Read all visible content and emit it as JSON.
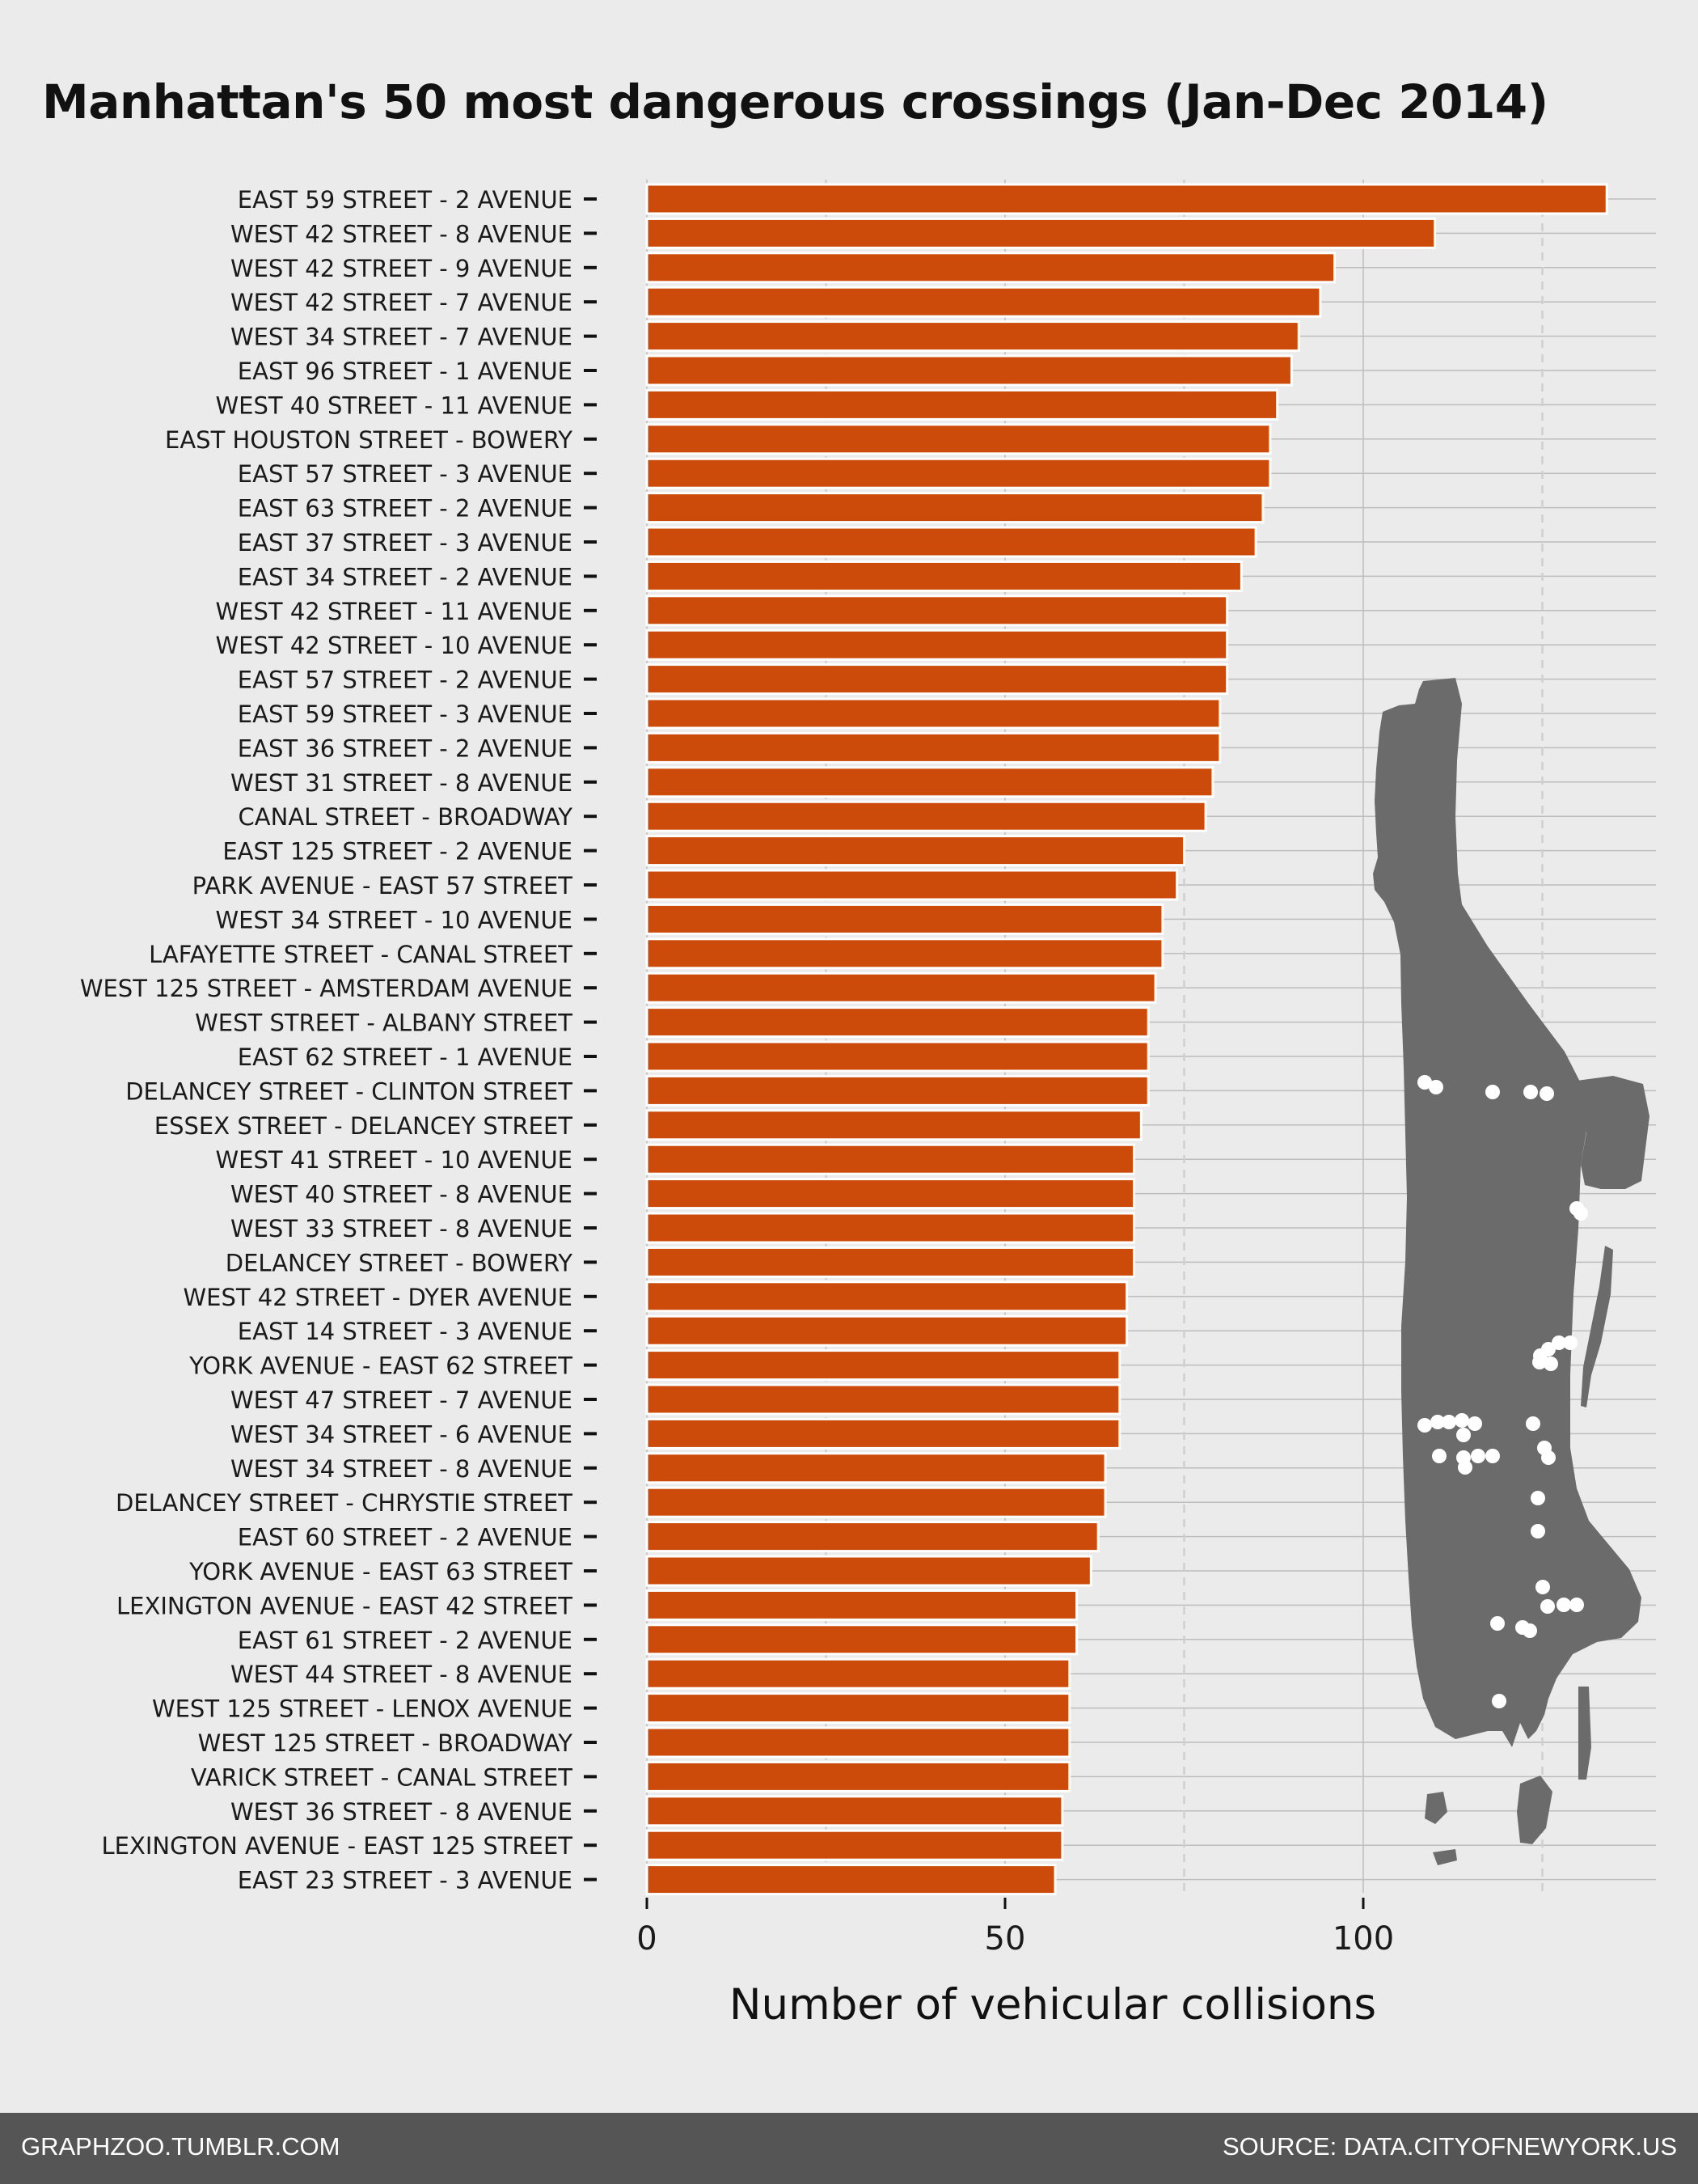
{
  "chart_data": {
    "type": "bar",
    "orientation": "horizontal",
    "title": "Manhattan's 50 most dangerous crossings (Jan-Dec 2014)",
    "xlabel": "Number of vehicular collisions",
    "ylabel": "",
    "xlim": [
      0,
      140
    ],
    "xticks": [
      0,
      50,
      100
    ],
    "grid": true,
    "bar_color": "#cc4a0a",
    "inset": "map of Manhattan with the 50 crossings marked as white dots",
    "categories": [
      "EAST 59 STREET - 2 AVENUE",
      "WEST 42 STREET - 8 AVENUE",
      "WEST 42 STREET - 9 AVENUE",
      "WEST 42 STREET - 7 AVENUE",
      "WEST 34 STREET - 7 AVENUE",
      "EAST 96 STREET - 1 AVENUE",
      "WEST 40 STREET - 11 AVENUE",
      "EAST HOUSTON STREET - BOWERY",
      "EAST 57 STREET - 3 AVENUE",
      "EAST 63 STREET - 2 AVENUE",
      "EAST 37 STREET - 3 AVENUE",
      "EAST 34 STREET - 2 AVENUE",
      "WEST 42 STREET - 11 AVENUE",
      "WEST 42 STREET - 10 AVENUE",
      "EAST 57 STREET - 2 AVENUE",
      "EAST 59 STREET - 3 AVENUE",
      "EAST 36 STREET - 2 AVENUE",
      "WEST 31 STREET - 8 AVENUE",
      "CANAL STREET - BROADWAY",
      "EAST 125 STREET - 2 AVENUE",
      "PARK AVENUE - EAST 57 STREET",
      "WEST 34 STREET - 10 AVENUE",
      "LAFAYETTE STREET - CANAL STREET",
      "WEST 125 STREET - AMSTERDAM AVENUE",
      "WEST STREET - ALBANY STREET",
      "EAST 62 STREET - 1 AVENUE",
      "DELANCEY STREET - CLINTON STREET",
      "ESSEX STREET - DELANCEY STREET",
      "WEST 41 STREET - 10 AVENUE",
      "WEST 40 STREET - 8 AVENUE",
      "WEST 33 STREET - 8 AVENUE",
      "DELANCEY STREET - BOWERY",
      "WEST 42 STREET - DYER AVENUE",
      "EAST 14 STREET - 3 AVENUE",
      "YORK AVENUE - EAST 62 STREET",
      "WEST 47 STREET - 7 AVENUE",
      "WEST 34 STREET - 6 AVENUE",
      "WEST 34 STREET - 8 AVENUE",
      "DELANCEY STREET - CHRYSTIE STREET",
      "EAST 60 STREET - 2 AVENUE",
      "YORK AVENUE - EAST 63 STREET",
      "LEXINGTON AVENUE - EAST 42 STREET",
      "EAST 61 STREET - 2 AVENUE",
      "WEST 44 STREET - 8 AVENUE",
      "WEST 125 STREET - LENOX AVENUE",
      "WEST 125 STREET - BROADWAY",
      "VARICK STREET - CANAL STREET",
      "WEST 36 STREET - 8 AVENUE",
      "LEXINGTON AVENUE - EAST 125 STREET",
      "EAST 23 STREET - 3 AVENUE"
    ],
    "values": [
      134,
      110,
      96,
      94,
      91,
      90,
      88,
      87,
      87,
      86,
      85,
      83,
      81,
      81,
      81,
      80,
      80,
      79,
      78,
      75,
      74,
      72,
      72,
      71,
      70,
      70,
      70,
      69,
      68,
      68,
      68,
      68,
      67,
      67,
      66,
      66,
      66,
      64,
      64,
      63,
      62,
      60,
      60,
      59,
      59,
      59,
      59,
      58,
      58,
      57
    ]
  },
  "footer": {
    "left": "GRAPHZOO.TUMBLR.COM",
    "right": "SOURCE: DATA.CITYOFNEWYORK.US"
  }
}
